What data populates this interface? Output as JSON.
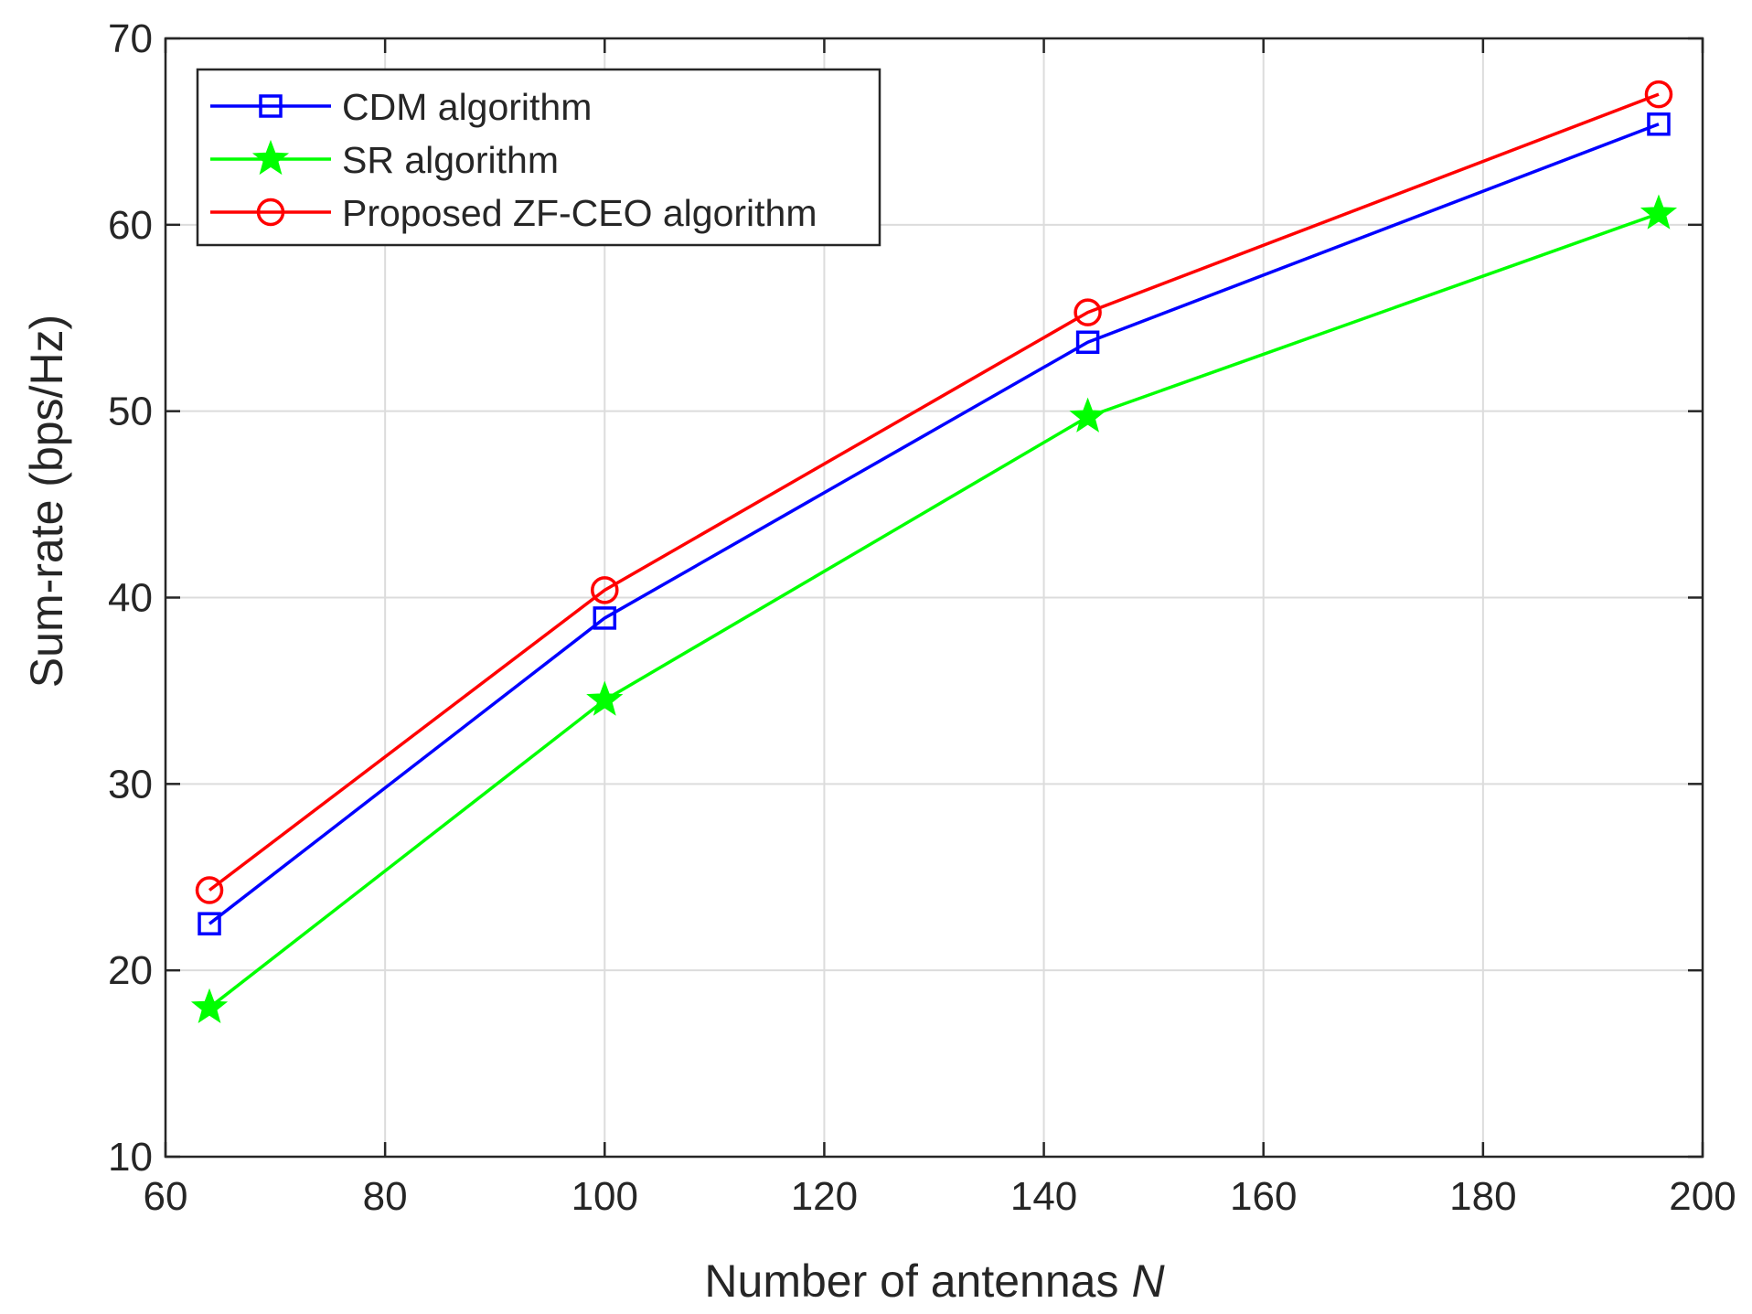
{
  "chart_data": {
    "type": "line",
    "title": "",
    "xlabel": "Number of antennas",
    "xlabel_var": "N",
    "ylabel": "Sum-rate (bps/Hz)",
    "xlim": [
      60,
      200
    ],
    "ylim": [
      10,
      70
    ],
    "xticks": [
      60,
      80,
      100,
      120,
      140,
      160,
      180,
      200
    ],
    "yticks": [
      10,
      20,
      30,
      40,
      50,
      60,
      70
    ],
    "grid": true,
    "legend_position": "top-left",
    "x": [
      64,
      100,
      144,
      196
    ],
    "series": [
      {
        "name": "CDM algorithm",
        "color": "#0000ff",
        "marker": "square",
        "values": [
          22.5,
          38.9,
          53.7,
          65.4
        ]
      },
      {
        "name": "SR algorithm",
        "color": "#00ff00",
        "marker": "star",
        "values": [
          18.0,
          34.5,
          49.7,
          60.6
        ]
      },
      {
        "name": "Proposed ZF-CEO algorithm",
        "color": "#ff0000",
        "marker": "circle",
        "values": [
          24.3,
          40.4,
          55.3,
          67.0
        ]
      }
    ]
  }
}
